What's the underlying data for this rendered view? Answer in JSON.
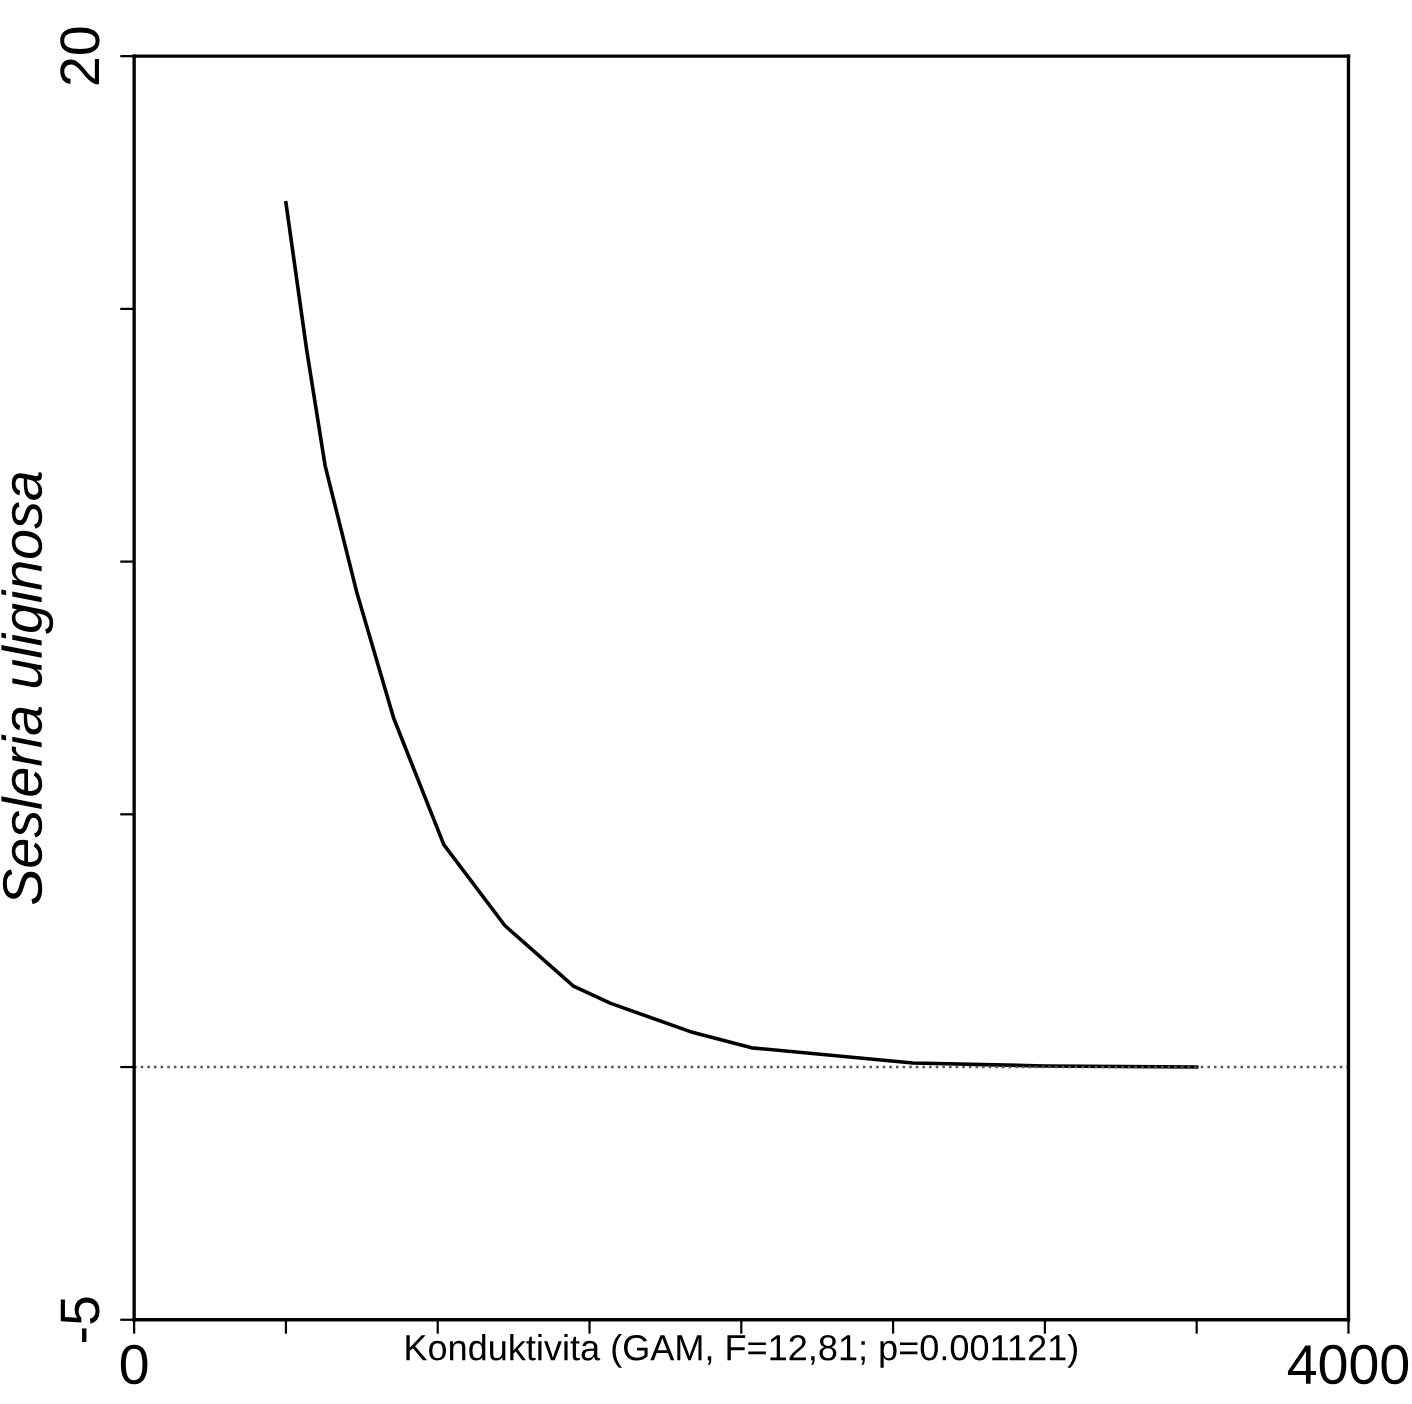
{
  "chart_data": {
    "type": "line",
    "xlabel": "Konduktivita (GAM, F=12,81; p=0.001121)",
    "ylabel": "Sesleria uliginosa",
    "x": [
      500,
      568,
      629,
      733,
      855,
      1020,
      1221,
      1447,
      1570,
      1832,
      2034,
      2565,
      3000,
      3500
    ],
    "series": [
      {
        "color": "#000000",
        "values": [
          17.1,
          14.2,
          11.9,
          9.4,
          6.9,
          4.4,
          2.8,
          1.6,
          1.26,
          0.7,
          0.38,
          0.08,
          0.02,
          0
        ]
      }
    ],
    "xlim": [
      0,
      4000
    ],
    "ylim": [
      -5,
      20
    ],
    "xticks": [
      0,
      {
        "value": 500,
        "label": null
      },
      {
        "value": 1000,
        "label": null
      },
      {
        "value": 1500,
        "label": null
      },
      {
        "value": 2000,
        "label": null
      },
      {
        "value": 2500,
        "label": null
      },
      {
        "value": 3000,
        "label": null
      },
      {
        "value": 3500,
        "label": null
      },
      4000
    ],
    "yticks": [
      -5,
      {
        "value": 0,
        "label": null
      },
      {
        "value": 5,
        "label": null
      },
      {
        "value": 10,
        "label": null
      },
      {
        "value": 15,
        "label": null
      },
      20
    ],
    "ref_lines": [
      {
        "axis": "y",
        "value": 0,
        "color": "#555555",
        "line_style": "dotted"
      }
    ],
    "grid": false,
    "legend": false,
    "marker": "none",
    "line_style": "solid"
  }
}
